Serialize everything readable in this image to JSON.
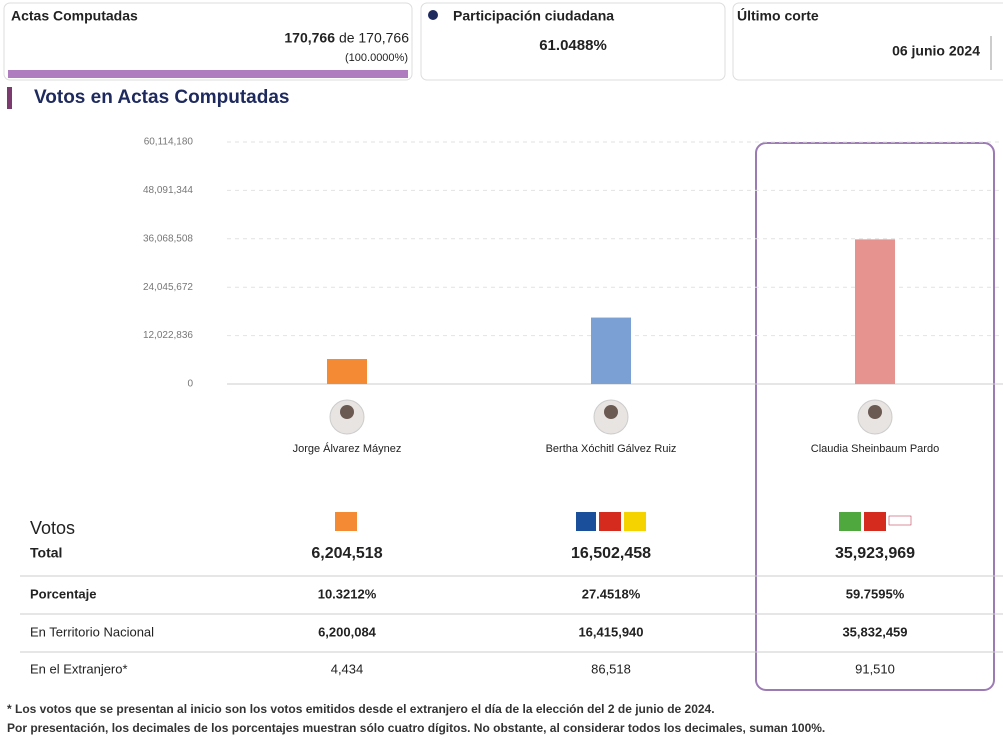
{
  "cards": [
    {
      "title": "Actas Computadas",
      "count": "170,766",
      "of": "de",
      "total": "170,766",
      "percent": "(100.0000%)"
    },
    {
      "title": "Participación ciudadana",
      "value": "61.0488%"
    },
    {
      "title": "Último corte",
      "date": "06 junio 2024"
    }
  ],
  "section_title": "Votos en Actas Computadas",
  "chart_data": {
    "type": "bar",
    "categories": [
      "Jorge Álvarez Máynez",
      "Bertha Xóchitl Gálvez Ruiz",
      "Claudia Sheinbaum Pardo"
    ],
    "values": [
      6204518,
      16502458,
      35923969
    ],
    "colors": [
      "#f58a34",
      "#7aa0d4",
      "#e69390"
    ],
    "ylim": [
      0,
      60114180
    ],
    "yticks": [
      0,
      {
        "value": 12022836,
        "label": "12,022,836"
      },
      {
        "value": 24045672,
        "label": "24,045,672"
      },
      {
        "value": 36068508,
        "label": "36,068,508"
      },
      {
        "value": 48091344,
        "label": "48,091,344"
      },
      {
        "value": 60114180,
        "label": "60,114,180"
      }
    ],
    "grid": true
  },
  "table": {
    "heading": "Votos",
    "rows": [
      [
        "Total",
        "6,204,518",
        "16,502,458",
        "35,923,969"
      ],
      [
        "Porcentaje",
        "10.3212%",
        "27.4518%",
        "59.7595%"
      ],
      [
        "En Territorio Nacional",
        "6,200,084",
        "16,415,940",
        "35,832,459"
      ],
      [
        "En el Extranjero*",
        "4,434",
        "86,518",
        "91,510"
      ]
    ]
  },
  "footnotes": [
    "* Los votos que se presentan al inicio son los votos emitidos desde el extranjero el día de la elección del 2 de junio de 2024.",
    "Por presentación, los decimales de los porcentajes muestran sólo cuatro dígitos. No obstante, al considerar todos los decimales, suman 100%."
  ]
}
